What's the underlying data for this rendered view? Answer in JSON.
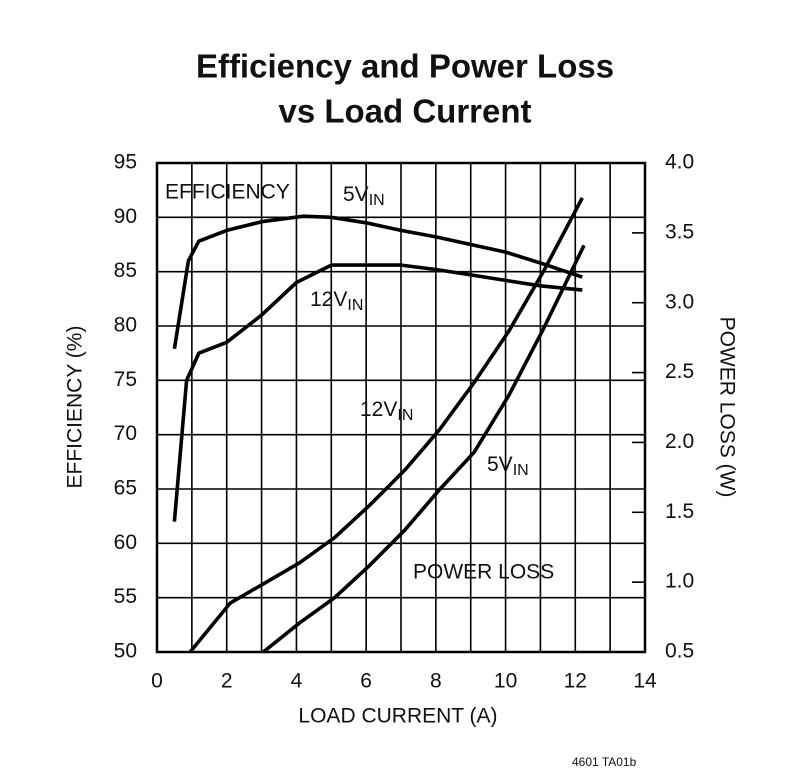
{
  "chart_data": {
    "type": "line",
    "title": [
      "Efficiency and Power Loss",
      "vs Load Current"
    ],
    "xlabel": "LOAD CURRENT (A)",
    "ylabel": "EFFICIENCY (%)",
    "y2label": "POWER LOSS (W)",
    "xlim": [
      0,
      14
    ],
    "xticks": [
      0,
      2,
      4,
      6,
      8,
      10,
      12,
      14
    ],
    "xgrid_minor": [
      1,
      3,
      5,
      7,
      9,
      11,
      13
    ],
    "ylim": [
      50,
      95
    ],
    "yticks": [
      50,
      55,
      60,
      65,
      70,
      75,
      80,
      85,
      90,
      95
    ],
    "y2lim": [
      0.5,
      4.0
    ],
    "y2ticks": [
      0.5,
      {
        "value": 1,
        "label": "1.0"
      },
      1.5,
      {
        "value": 2,
        "label": "2.0"
      },
      2.5,
      {
        "value": 3,
        "label": "3.0"
      },
      3.5,
      {
        "value": 4,
        "label": "4.0"
      }
    ],
    "grid": true,
    "color": "#000000",
    "annotations": [
      "EFFICIENCY",
      "POWER LOSS"
    ],
    "series": [
      {
        "name": "5V",
        "name_sub": "IN",
        "color": "#000000",
        "x": [
          0.5,
          0.9,
          1.2,
          2,
          3,
          4.2,
          5,
          6,
          7,
          8,
          9,
          10,
          11,
          12.2
        ],
        "values": [
          77.9,
          86,
          87.8,
          88.8,
          89.6,
          90.1,
          90,
          89.5,
          88.8,
          88.2,
          87.5,
          86.8,
          85.8,
          84.5
        ]
      },
      {
        "name": "12V",
        "name_sub": "IN",
        "color": "#000000",
        "x": [
          0.5,
          0.85,
          1.2,
          2,
          3,
          4,
          5,
          6,
          7,
          8,
          9,
          10,
          11,
          12.2
        ],
        "values": [
          62,
          75,
          77.5,
          78.5,
          81,
          84,
          85.6,
          85.6,
          85.6,
          85.2,
          84.7,
          84.2,
          83.7,
          83.3
        ]
      },
      {
        "name": "12V",
        "name_sub": "IN",
        "color": "#000000",
        "axis": "y2",
        "x": [
          0.95,
          2.1,
          3.0,
          4.1,
          5.1,
          6.1,
          7.1,
          8.1,
          9.1,
          10.1,
          11.1,
          12.2
        ],
        "values": [
          0.5,
          0.85,
          0.98,
          1.14,
          1.32,
          1.55,
          1.8,
          2.09,
          2.43,
          2.8,
          3.23,
          3.75
        ]
      },
      {
        "name": "5V",
        "name_sub": "IN",
        "color": "#000000",
        "axis": "y2",
        "x": [
          3.05,
          4.1,
          5.1,
          6.1,
          7.1,
          8.1,
          9.1,
          10.1,
          11.1,
          12.25
        ],
        "values": [
          0.5,
          0.71,
          0.89,
          1.12,
          1.37,
          1.66,
          1.93,
          2.34,
          2.82,
          3.41
        ]
      }
    ],
    "footnote": "4601 TA01b"
  }
}
